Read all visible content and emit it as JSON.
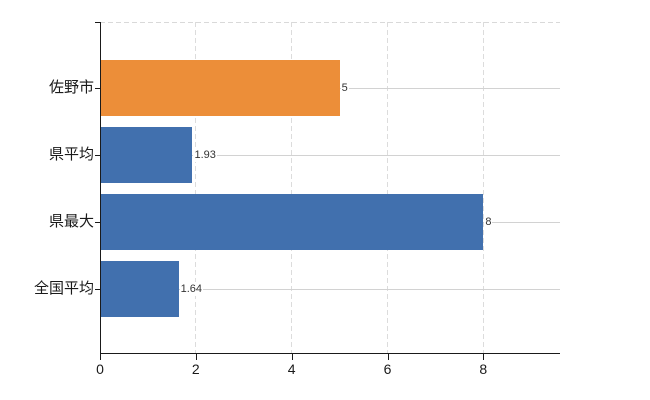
{
  "chart_data": {
    "type": "bar",
    "orientation": "horizontal",
    "title": "",
    "categories": [
      "佐野市",
      "県平均",
      "県最大",
      "全国平均"
    ],
    "values": [
      5,
      1.93,
      8,
      1.64
    ],
    "value_labels": [
      "5",
      "1.93",
      "8",
      "1.64"
    ],
    "bar_colors": [
      "#EC8E39",
      "#4170AE",
      "#4170AE",
      "#4170AE"
    ],
    "xlim": [
      0,
      9.6
    ],
    "x_ticks": [
      0,
      2,
      4,
      6,
      8
    ],
    "x_tick_labels": [
      "0",
      "2",
      "4",
      "6",
      "8"
    ],
    "grid": true,
    "legend": false
  },
  "colors": {
    "bar_orange": "#EC8E39",
    "bar_blue": "#4170AE",
    "axis": "#1a1a1a",
    "grid_vertical": "#dcdcdc",
    "grid_horizontal": "#d2d2d2",
    "grid_top": "#d9d9d9",
    "value_label": "#333333",
    "tick_label": "#1a1a1a",
    "background": "#ffffff"
  }
}
